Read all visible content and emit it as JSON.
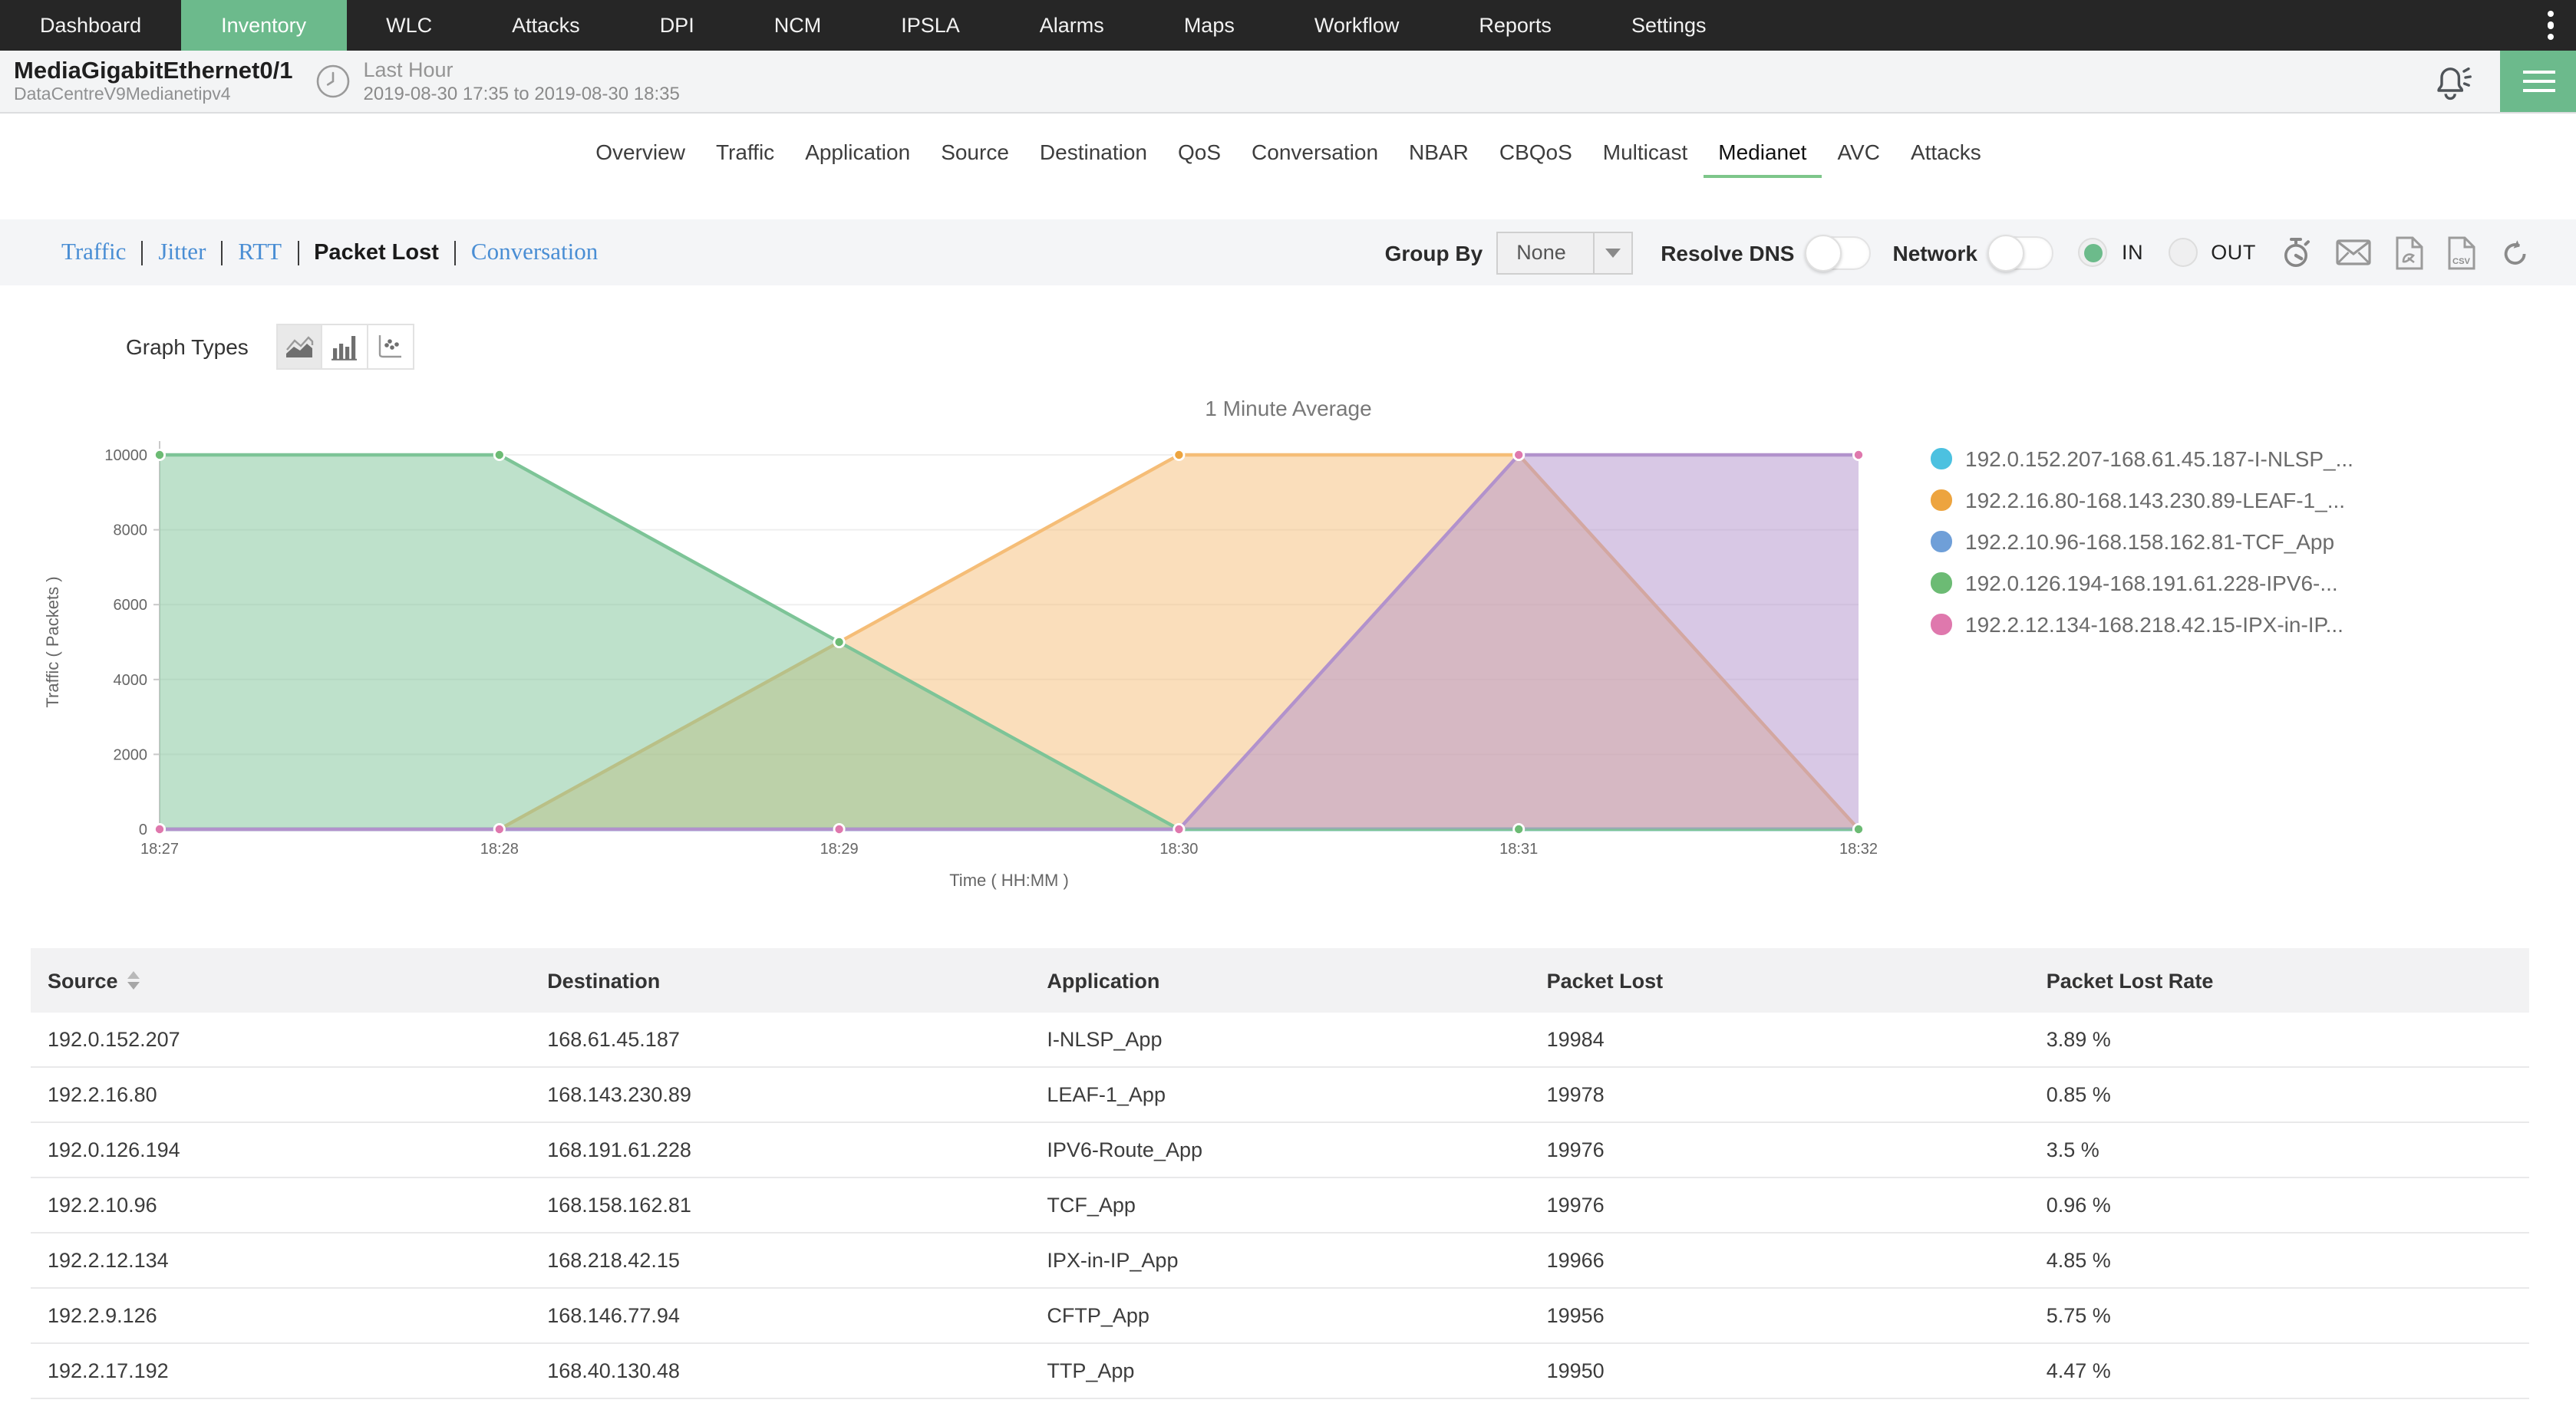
{
  "colors": {
    "nav_bg": "#262626",
    "accent_green": "#6cba8c",
    "tab_underline": "#7dc68a",
    "link_blue": "#4a8ed4"
  },
  "nav": {
    "items": [
      {
        "label": "Dashboard",
        "active": false
      },
      {
        "label": "Inventory",
        "active": true
      },
      {
        "label": "WLC",
        "active": false
      },
      {
        "label": "Attacks",
        "active": false
      },
      {
        "label": "DPI",
        "active": false
      },
      {
        "label": "NCM",
        "active": false
      },
      {
        "label": "IPSLA",
        "active": false
      },
      {
        "label": "Alarms",
        "active": false
      },
      {
        "label": "Maps",
        "active": false
      },
      {
        "label": "Workflow",
        "active": false
      },
      {
        "label": "Reports",
        "active": false
      },
      {
        "label": "Settings",
        "active": false
      }
    ]
  },
  "header": {
    "title": "MediaGigabitEthernet0/1",
    "subtitle": "DataCentreV9Medianetipv4",
    "time_range_label": "Last Hour",
    "time_range": "2019-08-30 17:35 to 2019-08-30 18:35"
  },
  "tabs": {
    "items": [
      {
        "label": "Overview",
        "active": false
      },
      {
        "label": "Traffic",
        "active": false
      },
      {
        "label": "Application",
        "active": false
      },
      {
        "label": "Source",
        "active": false
      },
      {
        "label": "Destination",
        "active": false
      },
      {
        "label": "QoS",
        "active": false
      },
      {
        "label": "Conversation",
        "active": false
      },
      {
        "label": "NBAR",
        "active": false
      },
      {
        "label": "CBQoS",
        "active": false
      },
      {
        "label": "Multicast",
        "active": false
      },
      {
        "label": "Medianet",
        "active": true
      },
      {
        "label": "AVC",
        "active": false
      },
      {
        "label": "Attacks",
        "active": false
      }
    ]
  },
  "subtabs": {
    "items": [
      {
        "label": "Traffic",
        "active": false
      },
      {
        "label": "Jitter",
        "active": false
      },
      {
        "label": "RTT",
        "active": false
      },
      {
        "label": "Packet Lost",
        "active": true
      },
      {
        "label": "Conversation",
        "active": false
      }
    ]
  },
  "controls": {
    "group_by_label": "Group By",
    "group_by_value": "None",
    "resolve_dns_label": "Resolve DNS",
    "resolve_dns_on": false,
    "network_label": "Network",
    "network_on": false,
    "in_label": "IN",
    "out_label": "OUT",
    "direction_selected": "IN"
  },
  "graph_types": {
    "label": "Graph Types",
    "selected": "area"
  },
  "chart_data": {
    "type": "area",
    "title": "1 Minute Average",
    "xlabel": "Time ( HH:MM )",
    "ylabel": "Traffic ( Packets )",
    "x": [
      "18:27",
      "18:28",
      "18:29",
      "18:30",
      "18:31",
      "18:32"
    ],
    "ylim": [
      0,
      10000
    ],
    "yticks": [
      0,
      2000,
      4000,
      6000,
      8000,
      10000
    ],
    "grid": true,
    "legend_position": "right",
    "series": [
      {
        "name": "192.0.152.207-168.61.45.187-I-NLSP_...",
        "color": "#4cc1e0",
        "fill_color": "#4cc1e0",
        "values": [
          0,
          0,
          0,
          0,
          0,
          0
        ]
      },
      {
        "name": "192.2.16.80-168.143.230.89-LEAF-1_...",
        "color": "#eda43f",
        "fill_color": "#f5bd77",
        "values": [
          0,
          0,
          5000,
          10000,
          10000,
          0
        ]
      },
      {
        "name": "192.2.10.96-168.158.162.81-TCF_App",
        "color": "#6f9fd8",
        "fill_color": "#6f9fd8",
        "values": [
          0,
          0,
          0,
          0,
          0,
          0
        ]
      },
      {
        "name": "192.0.126.194-168.191.61.228-IPV6-...",
        "color": "#6cbb74",
        "fill_color": "#7dc497",
        "values": [
          10000,
          10000,
          5000,
          0,
          0,
          0
        ]
      },
      {
        "name": "192.2.12.134-168.218.42.15-IPX-in-IP...",
        "color": "#df78ad",
        "fill_color": "#b292cc",
        "values": [
          0,
          0,
          0,
          0,
          10000,
          10000
        ]
      }
    ]
  },
  "table": {
    "columns": [
      "Source",
      "Destination",
      "Application",
      "Packet Lost",
      "Packet Lost Rate"
    ],
    "sort_column": "Source",
    "rows": [
      [
        "192.0.152.207",
        "168.61.45.187",
        "I-NLSP_App",
        "19984",
        "3.89 %"
      ],
      [
        "192.2.16.80",
        "168.143.230.89",
        "LEAF-1_App",
        "19978",
        "0.85 %"
      ],
      [
        "192.0.126.194",
        "168.191.61.228",
        "IPV6-Route_App",
        "19976",
        "3.5 %"
      ],
      [
        "192.2.10.96",
        "168.158.162.81",
        "TCF_App",
        "19976",
        "0.96 %"
      ],
      [
        "192.2.12.134",
        "168.218.42.15",
        "IPX-in-IP_App",
        "19966",
        "4.85 %"
      ],
      [
        "192.2.9.126",
        "168.146.77.94",
        "CFTP_App",
        "19956",
        "5.75 %"
      ],
      [
        "192.2.17.192",
        "168.40.130.48",
        "TTP_App",
        "19950",
        "4.47 %"
      ]
    ]
  }
}
